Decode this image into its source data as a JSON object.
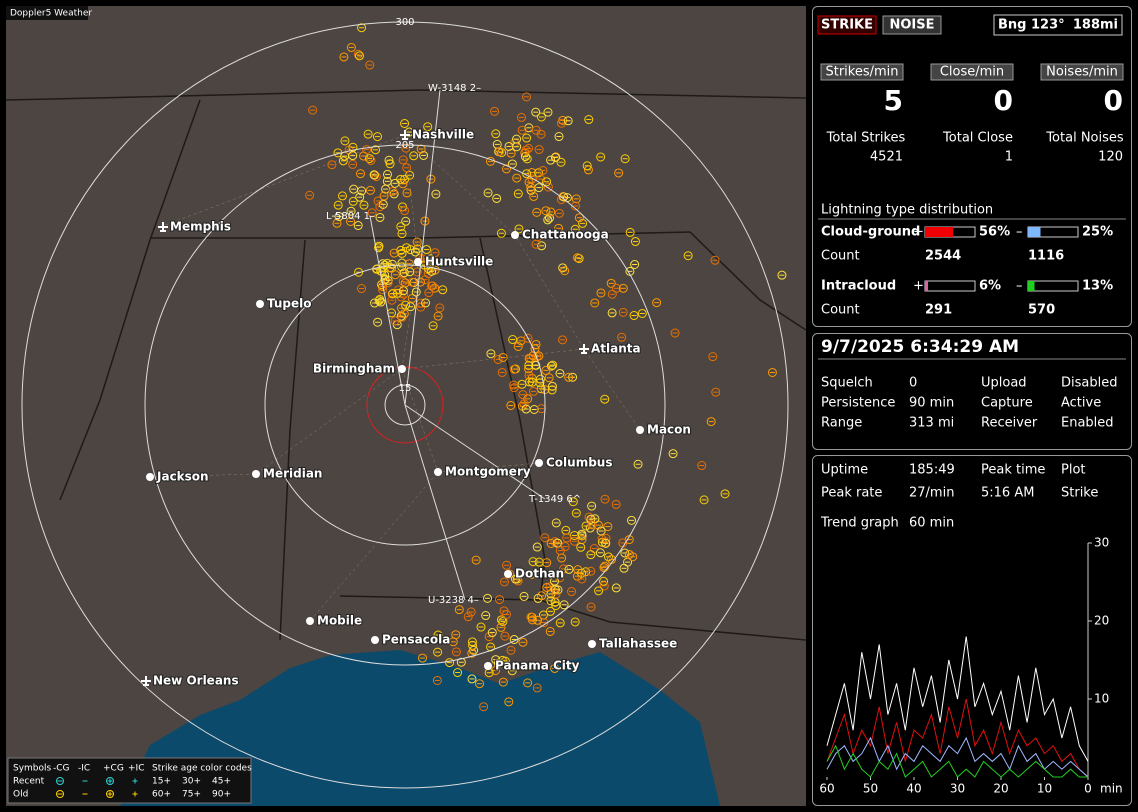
{
  "app_title": "Doppler5 Weather",
  "map": {
    "ring_labels": [
      300,
      205,
      15
    ],
    "track_labels": [
      "W-3148 2–",
      "L-5804 1–",
      "T-1349 6^",
      "U-3238 4–"
    ],
    "cities": [
      {
        "name": "Nashville",
        "airport": true
      },
      {
        "name": "Memphis",
        "airport": true
      },
      {
        "name": "Chattanooga",
        "airport": false
      },
      {
        "name": "Huntsville",
        "airport": false
      },
      {
        "name": "Tupelo",
        "airport": false
      },
      {
        "name": "Atlanta",
        "airport": true
      },
      {
        "name": "Birmingham",
        "airport": false
      },
      {
        "name": "Macon",
        "airport": false
      },
      {
        "name": "Jackson",
        "airport": false
      },
      {
        "name": "Meridian",
        "airport": false
      },
      {
        "name": "Montgomery",
        "airport": false
      },
      {
        "name": "Columbus",
        "airport": false
      },
      {
        "name": "Dothan",
        "airport": false
      },
      {
        "name": "Mobile",
        "airport": false
      },
      {
        "name": "Pensacola",
        "airport": false
      },
      {
        "name": "Tallahassee",
        "airport": false
      },
      {
        "name": "Panama City",
        "airport": false
      },
      {
        "name": "New Orleans",
        "airport": true
      }
    ],
    "legend": {
      "symbols_label": "Symbols",
      "columns": [
        "-CG",
        "-IC",
        "+CG",
        "+IC"
      ],
      "age_label": "Strike age color codes",
      "rows": [
        {
          "label": "Recent",
          "ages": [
            "15+",
            "30+",
            "45+"
          ]
        },
        {
          "label": "Old",
          "ages": [
            "60+",
            "75+",
            "90+"
          ]
        }
      ]
    }
  },
  "panel": {
    "mode_buttons": [
      "STRIKE",
      "NOISE"
    ],
    "bearing": "Bng 123°",
    "distance": "188mi",
    "rates": [
      {
        "label": "Strikes/min",
        "value": 5
      },
      {
        "label": "Close/min",
        "value": 0
      },
      {
        "label": "Noises/min",
        "value": 0
      }
    ],
    "totals": [
      {
        "label": "Total Strikes",
        "value": 4521
      },
      {
        "label": "Total Close",
        "value": 1
      },
      {
        "label": "Total Noises",
        "value": 120
      }
    ],
    "distribution": {
      "title": "Lightning type distribution",
      "count_label": "Count",
      "rows": [
        {
          "label": "Cloud-ground",
          "pos": {
            "sign": "+",
            "value": 56,
            "label": "56%",
            "count": 2544
          },
          "neg": {
            "sign": "–",
            "value": 25,
            "label": "25%",
            "count": 1116
          }
        },
        {
          "label": "Intracloud",
          "pos": {
            "sign": "+",
            "value": 6,
            "label": "6%",
            "count": 291
          },
          "neg": {
            "sign": "–",
            "value": 13,
            "label": "13%",
            "count": 570
          }
        }
      ]
    }
  },
  "status": {
    "datetime": "9/7/2025 6:34:29 AM",
    "rows": [
      [
        "Squelch",
        "0",
        "Upload",
        "Disabled"
      ],
      [
        "Persistence",
        "90 min",
        "Capture",
        "Active"
      ],
      [
        "Range",
        "313 mi",
        "Receiver",
        "Enabled"
      ]
    ]
  },
  "stats": {
    "rows": [
      [
        "Uptime",
        "185:49",
        "Peak time",
        "Plot"
      ],
      [
        "Peak rate",
        "27/min",
        "5:16 AM",
        "Strike"
      ]
    ],
    "trend_label": "Trend graph",
    "trend_window": "60 min"
  },
  "chart_data": {
    "type": "line",
    "x": [
      60,
      58,
      56,
      54,
      52,
      50,
      48,
      46,
      44,
      42,
      40,
      38,
      36,
      34,
      32,
      30,
      28,
      26,
      24,
      22,
      20,
      18,
      16,
      14,
      12,
      10,
      8,
      6,
      4,
      2,
      0
    ],
    "xlim": [
      60,
      0
    ],
    "ylim": [
      0,
      30
    ],
    "yticks": [
      10,
      20,
      30
    ],
    "xticks": [
      60,
      50,
      40,
      30,
      20,
      10,
      0
    ],
    "x_unit": "min",
    "series": [
      {
        "color": "#ffffff",
        "values": [
          4,
          8,
          12,
          6,
          16,
          10,
          17,
          8,
          12,
          6,
          14,
          9,
          13,
          7,
          15,
          10,
          18,
          9,
          12,
          8,
          11,
          6,
          13,
          7,
          14,
          8,
          10,
          5,
          9,
          4,
          2
        ]
      },
      {
        "color": "#e01010",
        "values": [
          2,
          5,
          8,
          3,
          6,
          4,
          9,
          3,
          7,
          2,
          6,
          5,
          8,
          3,
          9,
          5,
          10,
          4,
          6,
          3,
          7,
          3,
          6,
          4,
          5,
          3,
          4,
          2,
          3,
          1,
          0
        ]
      },
      {
        "color": "#a0b8ff",
        "values": [
          1,
          3,
          4,
          2,
          3,
          5,
          2,
          4,
          1,
          3,
          2,
          4,
          3,
          2,
          4,
          3,
          5,
          2,
          3,
          2,
          3,
          1,
          4,
          2,
          3,
          1,
          2,
          1,
          2,
          1,
          0
        ]
      },
      {
        "color": "#20d020",
        "values": [
          2,
          4,
          1,
          3,
          1,
          0,
          2,
          1,
          3,
          0,
          1,
          2,
          0,
          1,
          2,
          0,
          1,
          0,
          2,
          1,
          0,
          1,
          0,
          1,
          2,
          1,
          0,
          0,
          1,
          0,
          0
        ]
      }
    ]
  }
}
